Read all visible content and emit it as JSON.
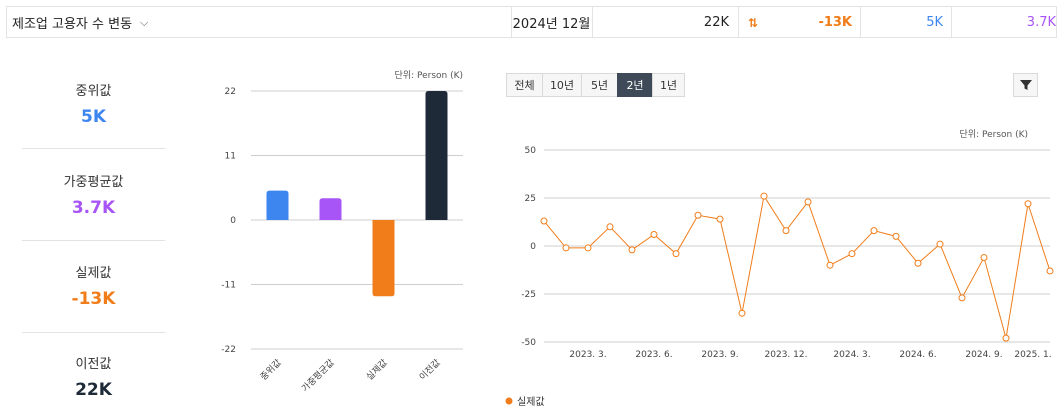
{
  "header": {
    "title": "제조업 고용자 수 변동",
    "period": "2024년 12월",
    "previous": "22K",
    "actual": "-13K",
    "median": "5K",
    "weighted_avg": "3.7K",
    "colors": {
      "actual": "#f07d1a",
      "median": "#3d86f0",
      "weighted_avg": "#a855f7"
    }
  },
  "stats": [
    {
      "label": "중위값",
      "value": "5K",
      "color": "#3d86f0"
    },
    {
      "label": "가중평균값",
      "value": "3.7K",
      "color": "#a855f7"
    },
    {
      "label": "실제값",
      "value": "-13K",
      "color": "#f07d1a"
    },
    {
      "label": "이전값",
      "value": "22K",
      "color": "#1f2a38"
    }
  ],
  "tabs": [
    "전체",
    "10년",
    "5년",
    "2년",
    "1년"
  ],
  "active_tab": "2년",
  "chart_data": [
    {
      "type": "bar",
      "unit_label": "단위: Person (K)",
      "categories": [
        "중위값",
        "가중평균값",
        "실제값",
        "이전값"
      ],
      "values": [
        5,
        3.7,
        -13,
        22
      ],
      "colors": [
        "#3d86f0",
        "#a855f7",
        "#f07d1a",
        "#1f2a38"
      ],
      "yticks": [
        22,
        11,
        0,
        -11,
        -22
      ],
      "ylim": [
        -22,
        22
      ],
      "grid": true
    },
    {
      "type": "line",
      "unit_label": "단위: Person (K)",
      "x": [
        "2023-01",
        "2023-02",
        "2023-03",
        "2023-04",
        "2023-05",
        "2023-06",
        "2023-07",
        "2023-08",
        "2023-09",
        "2023-10",
        "2023-11",
        "2023-12",
        "2024-01",
        "2024-02",
        "2024-03",
        "2024-04",
        "2024-05",
        "2024-06",
        "2024-07",
        "2024-08",
        "2024-09",
        "2024-10",
        "2024-11",
        "2024-12",
        "2025-01"
      ],
      "series": [
        {
          "name": "실제값",
          "color": "#f07d1a",
          "values": [
            13,
            -1,
            -1,
            10,
            -2,
            6,
            -4,
            16,
            14,
            -35,
            26,
            8,
            23,
            -10,
            -4,
            8,
            5,
            -9,
            1,
            -27,
            -6,
            -48,
            22,
            -13,
            null
          ]
        }
      ],
      "xticks": [
        "2023. 3.",
        "2023. 6.",
        "2023. 9.",
        "2023. 12.",
        "2024. 3.",
        "2024. 6.",
        "2024. 9.",
        "2025. 1."
      ],
      "yticks": [
        50,
        25,
        0,
        -25,
        -50
      ],
      "ylim": [
        -50,
        50
      ],
      "legend": "bottom-left",
      "grid": true
    }
  ]
}
